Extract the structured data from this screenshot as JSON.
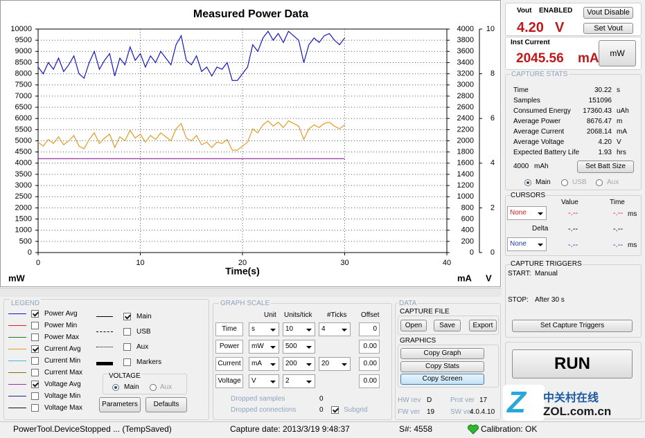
{
  "chart_data": {
    "type": "line",
    "title": "Measured Power Data",
    "x_label": "Time(s)",
    "y_label": "mW",
    "y2_label": "mA",
    "y3_label": "V",
    "x": [
      0,
      0.5,
      1,
      1.5,
      2,
      2.5,
      3,
      3.5,
      4,
      4.5,
      5,
      5.5,
      6,
      6.5,
      7,
      7.5,
      8,
      8.5,
      9,
      9.5,
      10,
      10.5,
      11,
      11.5,
      12,
      12.5,
      13,
      13.5,
      14,
      14.5,
      15,
      15.5,
      16,
      16.5,
      17,
      17.5,
      18,
      18.5,
      19,
      19.5,
      20,
      20.5,
      21,
      21.5,
      22,
      22.5,
      23,
      23.5,
      24,
      24.5,
      25,
      25.5,
      26,
      26.5,
      27,
      27.5,
      28,
      28.5,
      29,
      29.5,
      30
    ],
    "xlim": [
      0,
      40
    ],
    "xticks": [
      0,
      10,
      20,
      30,
      40
    ],
    "ylim": [
      0,
      10000
    ],
    "yticks": [
      0,
      500,
      1000,
      1500,
      2000,
      2500,
      3000,
      3500,
      4000,
      4500,
      5000,
      5500,
      6000,
      6500,
      7000,
      7500,
      8000,
      8500,
      9000,
      9500,
      10000
    ],
    "y2lim": [
      0,
      4000
    ],
    "y2ticks": [
      0,
      200,
      400,
      600,
      800,
      1000,
      1200,
      1400,
      1600,
      1800,
      2000,
      2200,
      2400,
      2600,
      2800,
      3000,
      3200,
      3400,
      3600,
      3800,
      4000
    ],
    "y3lim": [
      0,
      10
    ],
    "y3ticks": [
      0,
      2,
      4,
      6,
      8,
      10
    ],
    "grid": true,
    "series": [
      {
        "name": "Power Avg",
        "color": "#1414c8",
        "axis": "y",
        "values": [
          8300,
          8000,
          8500,
          8200,
          8700,
          8100,
          8400,
          8800,
          8000,
          7800,
          8500,
          9000,
          8200,
          8600,
          8900,
          7900,
          8700,
          8400,
          9200,
          8600,
          8900,
          8300,
          8800,
          8500,
          9000,
          8700,
          8400,
          9300,
          9700,
          8600,
          8400,
          8800,
          8100,
          8300,
          7900,
          8300,
          8200,
          8500,
          7700,
          7700,
          8000,
          8300,
          9300,
          9000,
          9600,
          9900,
          9500,
          9800,
          9400,
          9900,
          9700,
          9500,
          8500,
          9300,
          9600,
          9400,
          9700,
          9800,
          9500,
          9300,
          9600
        ]
      },
      {
        "name": "Current Avg",
        "color": "#e39b22",
        "axis": "y2",
        "values": [
          1976,
          1905,
          2024,
          1952,
          2071,
          1929,
          2000,
          2095,
          1905,
          1857,
          2024,
          2143,
          1952,
          2048,
          2119,
          1881,
          2071,
          2000,
          2190,
          2048,
          2119,
          1976,
          2095,
          2024,
          2143,
          2071,
          2000,
          2214,
          2310,
          2048,
          2000,
          2095,
          1929,
          1976,
          1881,
          1976,
          1952,
          2024,
          1833,
          1833,
          1905,
          1976,
          2214,
          2143,
          2286,
          2357,
          2262,
          2333,
          2238,
          2357,
          2310,
          2262,
          2024,
          2214,
          2286,
          2238,
          2310,
          2333,
          2262,
          2214,
          2286
        ]
      },
      {
        "name": "Voltage Avg",
        "color": "#9b30a8",
        "axis": "y3",
        "values": [
          4.2,
          4.2,
          4.2,
          4.2,
          4.2,
          4.2,
          4.2,
          4.2,
          4.2,
          4.2,
          4.2,
          4.2,
          4.2,
          4.2,
          4.2,
          4.2,
          4.2,
          4.2,
          4.2,
          4.2,
          4.2,
          4.2,
          4.2,
          4.2,
          4.2,
          4.2,
          4.2,
          4.2,
          4.2,
          4.2,
          4.2,
          4.2,
          4.2,
          4.2,
          4.2,
          4.2,
          4.2,
          4.2,
          4.2,
          4.2,
          4.2,
          4.2,
          4.2,
          4.2,
          4.2,
          4.2,
          4.2,
          4.2,
          4.2,
          4.2,
          4.2,
          4.2,
          4.2,
          4.2,
          4.2,
          4.2,
          4.2,
          4.2,
          4.2,
          4.2,
          4.2
        ]
      }
    ]
  },
  "vout": {
    "label": "Vout",
    "state": "ENABLED",
    "value": "4.20",
    "unit": "V",
    "buttons": [
      "Vout Disable",
      "Set Vout"
    ]
  },
  "inst_current": {
    "label": "Inst Current",
    "value": "2045.56",
    "unit": "mA",
    "button": "mW"
  },
  "capture_stats": {
    "title": "CAPTURE STATS",
    "rows": [
      [
        "Time",
        "30.22",
        "s"
      ],
      [
        "Samples",
        "151096",
        ""
      ],
      [
        "Consumed Energy",
        "17360.43",
        "uAh"
      ],
      [
        "Average Power",
        "8676.47",
        "m"
      ],
      [
        "Average Current",
        "2068.14",
        "mA"
      ],
      [
        "Average Voltage",
        "4.20",
        "V"
      ],
      [
        "Expected Battery Life",
        "1.93",
        "hrs"
      ]
    ],
    "batt_size": "4000",
    "batt_unit": "mAh",
    "button": "Set Batt Size",
    "radios": [
      "Main",
      "USB",
      "Aux"
    ]
  },
  "cursors": {
    "title": "CURSORS",
    "headers": [
      "Value",
      "Time"
    ],
    "delta": "Delta",
    "rows": [
      {
        "select": "None",
        "value": "-.--",
        "time": "-.--",
        "unit": "ms"
      },
      {
        "select": "None",
        "value": "-.--",
        "time": "-.--",
        "unit": "ms"
      }
    ],
    "delta_values": [
      "-.--",
      "-.--"
    ]
  },
  "triggers": {
    "title": "CAPTURE TRIGGERS",
    "start_label": "START:",
    "start": "Manual",
    "stop_label": "STOP:",
    "stop": "After 30 s",
    "button": "Set Capture Triggers"
  },
  "run": "RUN",
  "watermark": [
    "中关村在线",
    "ZOL.com.cn"
  ],
  "legend": {
    "title": "LEGEND",
    "items": [
      {
        "name": "Power Min",
        "color": "#d42020",
        "checked": false
      },
      {
        "name": "Power Max",
        "color": "#1c7a1c",
        "checked": false
      },
      {
        "name": "Current Min",
        "color": "#3cc0c8",
        "checked": false
      },
      {
        "name": "Current Max",
        "color": "#8a6a10",
        "checked": false
      },
      {
        "name": "Voltage Min",
        "color": "#20208a",
        "checked": false
      },
      {
        "name": "Voltage Max",
        "color": "#111111",
        "checked": false
      }
    ],
    "styles": [
      {
        "name": "Main",
        "checked": true
      },
      {
        "name": "USB",
        "checked": false
      },
      {
        "name": "Aux",
        "checked": false
      },
      {
        "name": "Markers",
        "checked": false
      }
    ],
    "voltage": {
      "title": "VOLTAGE",
      "options": [
        "Main",
        "Aux"
      ]
    },
    "buttons": [
      "Parameters",
      "Defaults"
    ]
  },
  "graph_scale": {
    "title": "GRAPH SCALE",
    "headers": [
      "Unit",
      "Units/tick",
      "#Ticks",
      "Offset"
    ],
    "rows": [
      {
        "label": "Time",
        "unit": "s",
        "per_tick": "10",
        "ticks": "4",
        "offset": "0"
      },
      {
        "label": "Power",
        "unit": "mW",
        "per_tick": "500",
        "offset": "0.00"
      },
      {
        "label": "Current",
        "unit": "mA",
        "per_tick": "200",
        "ticks": "20",
        "offset": "0.00"
      },
      {
        "label": "Voltage",
        "unit": "V",
        "per_tick": "2",
        "offset": "0.00"
      }
    ],
    "dropped": [
      {
        "label": "Dropped samples",
        "value": "0"
      },
      {
        "label": "Dropped connections",
        "value": "0"
      }
    ],
    "subgrid": {
      "label": "Subgrid",
      "checked": true
    }
  },
  "data_panel": {
    "title": "DATA",
    "capture_file": {
      "title": "CAPTURE FILE",
      "buttons": [
        "Open",
        "Save",
        "Export"
      ]
    },
    "graphics": {
      "title": "GRAPHICS",
      "buttons": [
        "Copy Graph",
        "Copy Stats",
        "Copy Screen"
      ]
    }
  },
  "versions": [
    [
      "HW rev",
      "D"
    ],
    [
      "Prot ver",
      "17"
    ],
    [
      "FW ver",
      "19"
    ],
    [
      "SW ver",
      "4.0.4.10"
    ]
  ],
  "status": [
    "PowerTool.DeviceStopped ... (TempSaved)",
    "Capture date: 2013/3/19 9:48:37",
    "S#: 4558",
    "Calibration: OK"
  ]
}
